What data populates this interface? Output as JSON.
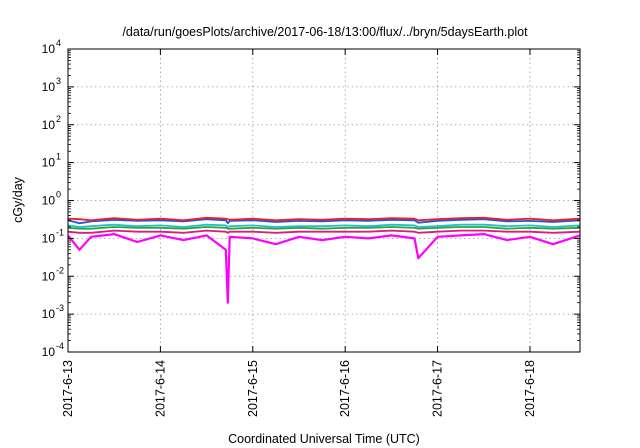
{
  "chart_data": {
    "type": "line",
    "title": "/data/run/goesPlots/archive/2017-06-18/13:00/flux/../bryn/5daysEarth.plot",
    "xlabel": "Coordinated Universal Time (UTC)",
    "ylabel": "cGy/day",
    "yscale": "log",
    "ylim": [
      0.0001,
      10000
    ],
    "xlim": [
      "2017-06-13 00:00",
      "2017-06-18 13:00"
    ],
    "grid": true,
    "xticks": [
      "2017-6-13",
      "2017-6-14",
      "2017-6-15",
      "2017-6-16",
      "2017-6-17",
      "2017-6-18"
    ],
    "yticks": [
      {
        "base": "10",
        "exp": "-4"
      },
      {
        "base": "10",
        "exp": "-3"
      },
      {
        "base": "10",
        "exp": "-2"
      },
      {
        "base": "10",
        "exp": "-1"
      },
      {
        "base": "10",
        "exp": "0"
      },
      {
        "base": "10",
        "exp": "1"
      },
      {
        "base": "10",
        "exp": "2"
      },
      {
        "base": "10",
        "exp": "3"
      },
      {
        "base": "10",
        "exp": "4"
      }
    ],
    "x": [
      "2017-06-13 00:00",
      "2017-06-13 03:00",
      "2017-06-13 06:00",
      "2017-06-13 12:00",
      "2017-06-13 18:00",
      "2017-06-14 00:00",
      "2017-06-14 06:00",
      "2017-06-14 12:00",
      "2017-06-14 17:00",
      "2017-06-14 17:30",
      "2017-06-14 18:00",
      "2017-06-15 00:00",
      "2017-06-15 06:00",
      "2017-06-15 12:00",
      "2017-06-15 18:00",
      "2017-06-16 00:00",
      "2017-06-16 06:00",
      "2017-06-16 12:00",
      "2017-06-16 18:00",
      "2017-06-16 19:00",
      "2017-06-17 00:00",
      "2017-06-17 06:00",
      "2017-06-17 12:00",
      "2017-06-17 18:00",
      "2017-06-18 00:00",
      "2017-06-18 06:00",
      "2017-06-18 13:00"
    ],
    "series": [
      {
        "color": "#e8202a",
        "values": [
          0.33,
          0.32,
          0.3,
          0.34,
          0.31,
          0.33,
          0.3,
          0.35,
          0.33,
          0.32,
          0.31,
          0.33,
          0.3,
          0.32,
          0.31,
          0.33,
          0.32,
          0.34,
          0.33,
          0.3,
          0.32,
          0.34,
          0.35,
          0.31,
          0.33,
          0.3,
          0.33
        ]
      },
      {
        "color": "#2255dd",
        "values": [
          0.3,
          0.25,
          0.28,
          0.31,
          0.29,
          0.3,
          0.28,
          0.32,
          0.3,
          0.25,
          0.29,
          0.3,
          0.27,
          0.29,
          0.28,
          0.3,
          0.29,
          0.31,
          0.3,
          0.26,
          0.29,
          0.31,
          0.32,
          0.28,
          0.29,
          0.27,
          0.3
        ]
      },
      {
        "color": "#25c0c0",
        "values": [
          0.22,
          0.2,
          0.21,
          0.23,
          0.21,
          0.22,
          0.2,
          0.23,
          0.22,
          0.2,
          0.21,
          0.22,
          0.2,
          0.21,
          0.21,
          0.22,
          0.21,
          0.23,
          0.22,
          0.2,
          0.21,
          0.23,
          0.23,
          0.21,
          0.22,
          0.2,
          0.22
        ]
      },
      {
        "color": "#28a745",
        "values": [
          0.19,
          0.18,
          0.18,
          0.2,
          0.19,
          0.19,
          0.18,
          0.2,
          0.19,
          0.18,
          0.18,
          0.19,
          0.18,
          0.19,
          0.18,
          0.19,
          0.19,
          0.2,
          0.19,
          0.18,
          0.19,
          0.2,
          0.2,
          0.18,
          0.19,
          0.18,
          0.19
        ]
      },
      {
        "color": "#e0197a",
        "values": [
          0.15,
          0.14,
          0.14,
          0.16,
          0.15,
          0.15,
          0.14,
          0.16,
          0.15,
          0.14,
          0.15,
          0.15,
          0.14,
          0.15,
          0.15,
          0.15,
          0.15,
          0.16,
          0.15,
          0.14,
          0.15,
          0.16,
          0.16,
          0.15,
          0.15,
          0.14,
          0.15
        ]
      },
      {
        "color": "#ff00ff",
        "values": [
          0.12,
          0.05,
          0.11,
          0.13,
          0.08,
          0.12,
          0.09,
          0.12,
          0.05,
          0.002,
          0.11,
          0.1,
          0.07,
          0.11,
          0.09,
          0.11,
          0.1,
          0.12,
          0.1,
          0.03,
          0.11,
          0.12,
          0.13,
          0.09,
          0.11,
          0.07,
          0.12
        ]
      }
    ]
  }
}
